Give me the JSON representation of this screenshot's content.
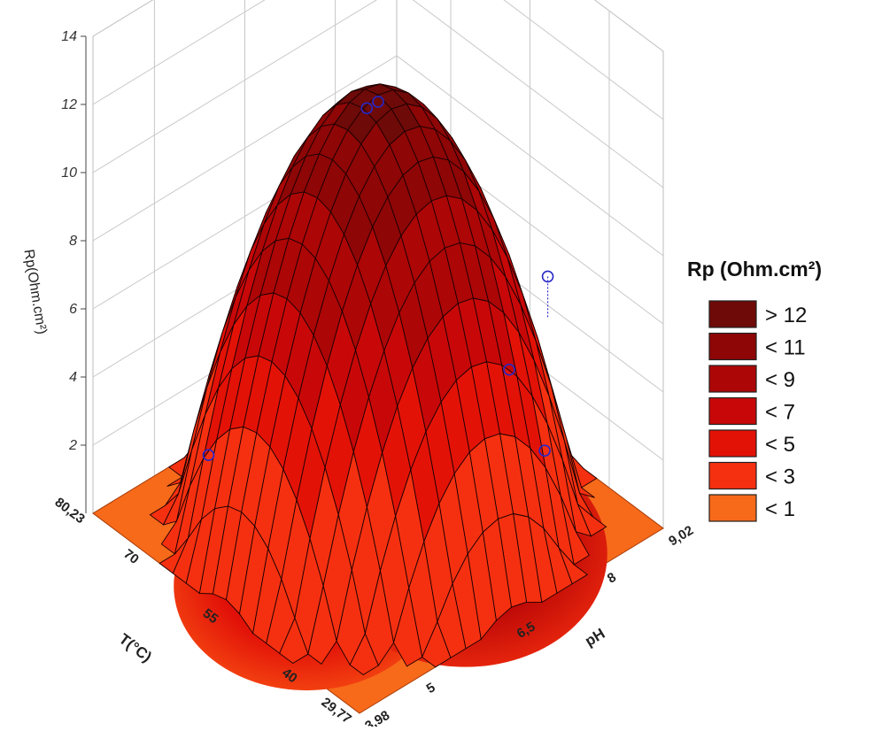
{
  "chart_data": {
    "type": "surface3d",
    "title": "",
    "x_axis": {
      "label": "pH",
      "range": [
        3.98,
        9.02
      ],
      "ticks": [
        "3,98",
        "5",
        "6,5",
        "8",
        "9,02"
      ]
    },
    "y_axis": {
      "label": "T(°C)",
      "range": [
        29.77,
        80.23
      ],
      "ticks": [
        "29,77",
        "40",
        "55",
        "70",
        "80,23"
      ]
    },
    "z_axis": {
      "label": "Rp(Ohm.cm²)",
      "range": [
        0,
        14
      ],
      "ticks": [
        "2",
        "4",
        "6",
        "8",
        "10",
        "12",
        "14"
      ]
    },
    "surface_peak": {
      "pH": 6.5,
      "T": 55,
      "Rp": 12.1
    },
    "observed_points": [
      {
        "pH": 6.5,
        "T": 55,
        "Rp": 12.3
      },
      {
        "pH": 6.4,
        "T": 56,
        "Rp": 12.1
      },
      {
        "pH": 8.0,
        "T": 40,
        "Rp": 7.3
      },
      {
        "pH": 7.8,
        "T": 45,
        "Rp": 4.2
      },
      {
        "pH": 5.0,
        "T": 70,
        "Rp": 1.8
      },
      {
        "pH": 8.3,
        "T": 44,
        "Rp": 1.4
      }
    ],
    "legend": {
      "title": "Rp (Ohm.cm²)",
      "position": "right",
      "entries": [
        {
          "label": "> 12",
          "color": "#6e0a08"
        },
        {
          "label": "< 11",
          "color": "#8e0606"
        },
        {
          "label": "< 9",
          "color": "#ad0606"
        },
        {
          "label": "< 7",
          "color": "#c80808"
        },
        {
          "label": "< 5",
          "color": "#e31207"
        },
        {
          "label": "< 3",
          "color": "#f53010"
        },
        {
          "label": "< 1",
          "color": "#f76a1a"
        }
      ]
    },
    "grid": true
  }
}
